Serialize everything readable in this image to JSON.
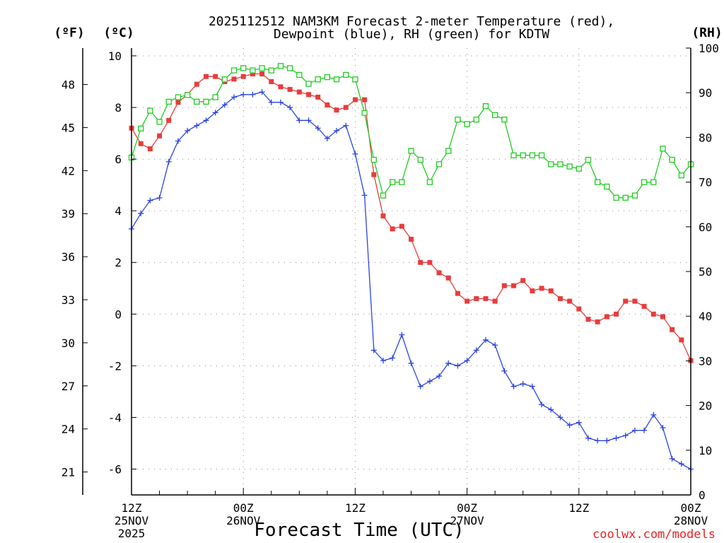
{
  "chart_data": {
    "type": "line",
    "title": [
      "2025112512 NAM3KM Forecast 2-meter Temperature (red),",
      "Dewpoint (blue), RH (green) for KDTW"
    ],
    "xlabel": "Forecast Time (UTC)",
    "credit": "coolwx.com/models",
    "units": {
      "f": "(ºF)",
      "c": "(ºC)",
      "rh": "(RH)"
    },
    "x_hours": {
      "start": 0,
      "end": 60,
      "step": 1
    },
    "x_ticks": [
      {
        "h": 0,
        "lines": [
          "12Z",
          "25NOV",
          "2025"
        ]
      },
      {
        "h": 12,
        "lines": [
          "00Z",
          "26NOV"
        ]
      },
      {
        "h": 24,
        "lines": [
          "12Z"
        ]
      },
      {
        "h": 36,
        "lines": [
          "00Z",
          "27NOV"
        ]
      },
      {
        "h": 48,
        "lines": [
          "12Z"
        ]
      },
      {
        "h": 60,
        "lines": [
          "00Z",
          "28NOV"
        ]
      }
    ],
    "y_celsius": {
      "min": -7,
      "max": 10.3,
      "ticks": [
        10,
        8,
        6,
        4,
        2,
        0,
        -2,
        -4,
        -6
      ]
    },
    "y_fahrenheit": {
      "ticks": [
        48,
        45,
        42,
        39,
        36,
        33,
        30,
        27,
        24,
        21
      ]
    },
    "y_rh": {
      "min": 0,
      "max": 100,
      "ticks": [
        100,
        90,
        80,
        70,
        60,
        50,
        40,
        30,
        20,
        10,
        0
      ]
    },
    "series": [
      {
        "name": "2-meter Temperature",
        "axis": "celsius",
        "color": "#e83c3c",
        "marker": "filled-square",
        "values": [
          7.2,
          6.6,
          6.4,
          6.9,
          7.5,
          8.2,
          8.5,
          8.9,
          9.2,
          9.2,
          9.0,
          9.1,
          9.2,
          9.3,
          9.3,
          9.0,
          8.8,
          8.7,
          8.6,
          8.5,
          8.4,
          8.1,
          7.9,
          8.0,
          8.3,
          8.3,
          5.4,
          3.8,
          3.3,
          3.4,
          2.9,
          2.0,
          2.0,
          1.6,
          1.4,
          0.8,
          0.5,
          0.6,
          0.6,
          0.5,
          1.1,
          1.1,
          1.3,
          0.9,
          1.0,
          0.9,
          0.6,
          0.5,
          0.2,
          -0.2,
          -0.3,
          -0.1,
          0.0,
          0.5,
          0.5,
          0.3,
          0.0,
          -0.1,
          -0.6,
          -1.0,
          -1.8
        ]
      },
      {
        "name": "Dewpoint",
        "axis": "celsius",
        "color": "#2a44e0",
        "marker": "plus",
        "values": [
          3.3,
          3.9,
          4.4,
          4.5,
          5.9,
          6.7,
          7.1,
          7.3,
          7.5,
          7.8,
          8.1,
          8.4,
          8.5,
          8.5,
          8.6,
          8.2,
          8.2,
          8.0,
          7.5,
          7.5,
          7.2,
          6.8,
          7.1,
          7.3,
          6.2,
          4.6,
          -1.4,
          -1.8,
          -1.7,
          -0.8,
          -1.9,
          -2.8,
          -2.6,
          -2.4,
          -1.9,
          -2.0,
          -1.8,
          -1.4,
          -1.0,
          -1.2,
          -2.2,
          -2.8,
          -2.7,
          -2.8,
          -3.5,
          -3.7,
          -4.0,
          -4.3,
          -4.2,
          -4.8,
          -4.9,
          -4.9,
          -4.8,
          -4.7,
          -4.5,
          -4.5,
          -3.9,
          -4.4,
          -5.6,
          -5.8,
          -6.0
        ]
      },
      {
        "name": "RH",
        "axis": "rh",
        "color": "#22cc22",
        "marker": "open-square",
        "values": [
          75.5,
          82,
          86,
          83.5,
          88,
          89,
          89.5,
          88,
          88,
          89,
          93,
          95,
          95.5,
          95,
          95.5,
          95,
          96,
          95.5,
          94,
          92,
          93,
          93.5,
          93,
          94,
          93,
          85.5,
          75,
          67,
          70,
          70,
          77,
          75,
          70,
          74,
          77,
          84,
          83,
          84,
          87,
          85,
          84,
          76,
          76,
          76,
          76,
          74,
          74,
          73.5,
          73,
          75,
          70,
          69,
          66.5,
          66.5,
          67,
          70,
          70,
          77.5,
          75,
          71.5,
          74
        ]
      }
    ]
  }
}
